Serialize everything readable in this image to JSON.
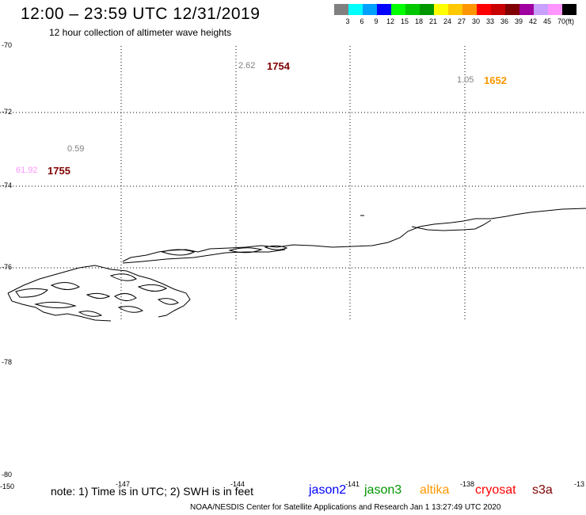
{
  "header": {
    "title": "12:00 – 23:59 UTC 12/31/2019",
    "subtitle": "12 hour collection of altimeter wave heights"
  },
  "legend": {
    "unit": "(ft)",
    "bins": [
      {
        "label": "3",
        "color": "#808080"
      },
      {
        "label": "6",
        "color": "#00ffff"
      },
      {
        "label": "9",
        "color": "#00a0ff"
      },
      {
        "label": "12",
        "color": "#0000ff"
      },
      {
        "label": "15",
        "color": "#00ff00"
      },
      {
        "label": "18",
        "color": "#00c800"
      },
      {
        "label": "21",
        "color": "#009600"
      },
      {
        "label": "24",
        "color": "#ffff00"
      },
      {
        "label": "27",
        "color": "#ffc800"
      },
      {
        "label": "30",
        "color": "#ff9600"
      },
      {
        "label": "33",
        "color": "#ff0000"
      },
      {
        "label": "36",
        "color": "#c80000"
      },
      {
        "label": "39",
        "color": "#800000"
      },
      {
        "label": "42",
        "color": "#a000a0"
      },
      {
        "label": "45",
        "color": "#c8a0ff"
      },
      {
        "label": "70",
        "color": "#ff96ff"
      },
      {
        "label": "",
        "color": "#000000"
      }
    ]
  },
  "axes": {
    "lat_labels": [
      "-70",
      "-72",
      "-74",
      "-76",
      "-78",
      "-80"
    ],
    "lon_labels": [
      "-150",
      "-147",
      "-144",
      "-141",
      "-138",
      "-13"
    ]
  },
  "observations": [
    {
      "swh": "2.62",
      "swh_color": "#808080",
      "pass": "1754",
      "pass_color": "#800000"
    },
    {
      "swh": "1.05",
      "swh_color": "#808080",
      "pass": "1652",
      "pass_color": "#ff9600"
    },
    {
      "swh": "0.59",
      "swh_color": "#808080",
      "pass": "",
      "pass_color": "#800000"
    },
    {
      "swh": "61.92",
      "swh_color": "#ff96ff",
      "pass": "1755",
      "pass_color": "#800000"
    }
  ],
  "footer": {
    "note": "note: 1) Time is in UTC; 2) SWH is in feet",
    "satellites": [
      {
        "name": "jason2",
        "color": "#0000ff"
      },
      {
        "name": "jason3",
        "color": "#009600"
      },
      {
        "name": "altika",
        "color": "#ff9600"
      },
      {
        "name": "cryosat",
        "color": "#ff0000"
      },
      {
        "name": "s3a",
        "color": "#800000"
      }
    ],
    "credit": "NOAA/NESDIS Center for Satellite Applications and Research    Jan  1 13:27:49 UTC 2020"
  }
}
